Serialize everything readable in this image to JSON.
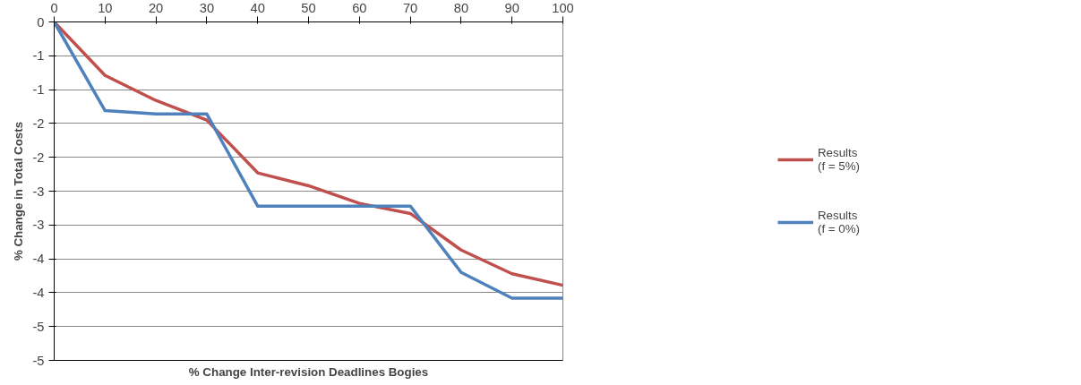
{
  "chart_data": {
    "type": "line",
    "xlabel": "% Change Inter-revision Deadlines Bogies",
    "ylabel": "% Change in Total Costs",
    "x": [
      0,
      10,
      20,
      30,
      40,
      50,
      60,
      70,
      80,
      90,
      100
    ],
    "series": [
      {
        "name": "Results\n(f = 5%)",
        "color": "#c0504d",
        "values": [
          0,
          -0.79,
          -1.16,
          -1.45,
          -2.23,
          -2.42,
          -2.68,
          -2.83,
          -3.37,
          -3.72,
          -3.89
        ]
      },
      {
        "name": "Results\n(f = 0%)",
        "color": "#4f81bd",
        "values": [
          0,
          -1.31,
          -1.36,
          -1.36,
          -2.72,
          -2.72,
          -2.72,
          -2.72,
          -3.7,
          -4.08,
          -4.08
        ]
      }
    ],
    "xlim": [
      0,
      100
    ],
    "xticks": [
      0,
      10,
      20,
      30,
      40,
      50,
      60,
      70,
      80,
      90,
      100
    ],
    "ylim": [
      -5,
      0
    ],
    "yticks": [
      0,
      {
        "value": -0.5,
        "label": "-1"
      },
      {
        "value": -1,
        "label": "-1"
      },
      {
        "value": -1.5,
        "label": "-2"
      },
      {
        "value": -2,
        "label": "-2"
      },
      {
        "value": -2.5,
        "label": "-3"
      },
      {
        "value": -3,
        "label": "-3"
      },
      {
        "value": -3.5,
        "label": "-4"
      },
      {
        "value": -4,
        "label": "-4"
      },
      {
        "value": -4.5,
        "label": "-5"
      },
      {
        "value": -5,
        "label": "-5"
      }
    ],
    "grid": "y",
    "legend": "right",
    "marker": "none",
    "line_style": "solid"
  }
}
